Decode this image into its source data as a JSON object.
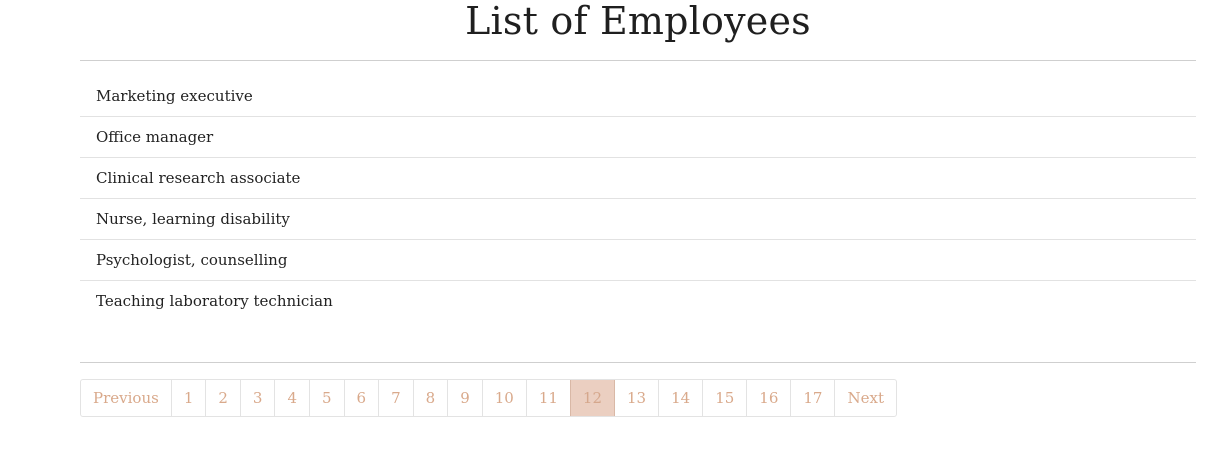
{
  "page": {
    "title": "List of Employees"
  },
  "employees": [
    "Marketing executive",
    "Office manager",
    "Clinical research associate",
    "Nurse, learning disability",
    "Psychologist, counselling",
    "Teaching laboratory technician"
  ],
  "pagination": {
    "previous_label": "Previous",
    "next_label": "Next",
    "pages": [
      "1",
      "2",
      "3",
      "4",
      "5",
      "6",
      "7",
      "8",
      "9",
      "10",
      "11",
      "12",
      "13",
      "14",
      "15",
      "16",
      "17"
    ],
    "current_page": "12",
    "accent_color": "#d9a98b",
    "active_bg_color": "#ebcfc1"
  }
}
